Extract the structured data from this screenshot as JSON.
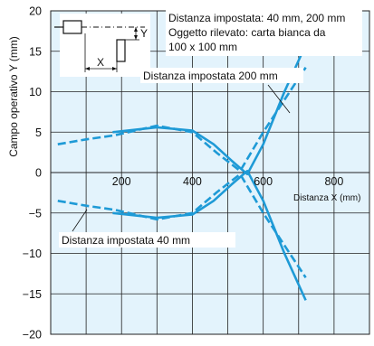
{
  "chart_data": {
    "type": "line",
    "title": "",
    "xlabel": "Distanza X (mm)",
    "ylabel": "Campo operativo Y (mm)",
    "xlim": [
      0,
      900
    ],
    "ylim": [
      -20,
      20
    ],
    "x_ticks": [
      "200",
      "400",
      "600",
      "800"
    ],
    "y_ticks": [
      "20",
      "15",
      "10",
      "5",
      "0",
      "−5",
      "−10",
      "−15",
      "−20"
    ],
    "grid": true,
    "legend_text": [
      "Distanza impostata: 40 mm, 200 mm",
      "Oggetto rilevato: carta bianca da",
      "100 x 100 mm"
    ],
    "diagram_labels": {
      "x": "X",
      "y": "Y"
    },
    "series": [
      {
        "name": "Distanza impostata 200 mm",
        "style": "solid",
        "upper": {
          "x": [
            175,
            300,
            400,
            460,
            510,
            555,
            600,
            660,
            720
          ],
          "y": [
            5,
            5.6,
            5.2,
            3.5,
            1.5,
            -0.2,
            3.5,
            10,
            15.8
          ]
        },
        "lower": {
          "x": [
            175,
            300,
            400,
            460,
            510,
            555,
            600,
            660,
            720
          ],
          "y": [
            -5,
            -5.6,
            -5.2,
            -3.5,
            -1.5,
            0.2,
            -3.5,
            -10,
            -15.8
          ]
        }
      },
      {
        "name": "Distanza impostata 40 mm",
        "style": "dashed",
        "upper": {
          "x": [
            20,
            100,
            180,
            300,
            400,
            470,
            535,
            600,
            660,
            720
          ],
          "y": [
            3.5,
            4.1,
            4.6,
            5.8,
            5.0,
            2.4,
            0.2,
            5.0,
            9.0,
            13.0
          ]
        },
        "lower": {
          "x": [
            20,
            100,
            180,
            300,
            400,
            470,
            535,
            600,
            660,
            720
          ],
          "y": [
            -3.5,
            -4.1,
            -4.6,
            -5.8,
            -5.0,
            -2.4,
            -0.2,
            -5.0,
            -9.0,
            -13.0
          ]
        }
      }
    ],
    "colors": {
      "plot_bg": "#e3f3fc",
      "line": "#1e9ad6",
      "grid": "#222222"
    }
  }
}
